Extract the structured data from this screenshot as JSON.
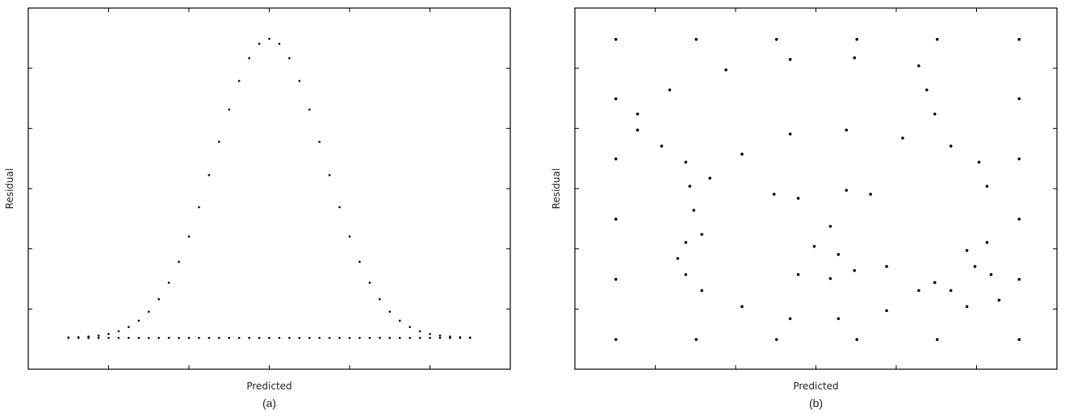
{
  "chart_data": [
    {
      "type": "scatter",
      "x_label": "Predicted",
      "y_label": "Residual",
      "caption": "(a)",
      "xlim": [
        0,
        6
      ],
      "ylim": [
        0,
        6
      ],
      "xticks": [
        1,
        2,
        3,
        4,
        5
      ],
      "yticks": [
        1,
        2,
        3,
        4,
        5
      ],
      "x": [
        0.5,
        0.625,
        0.75,
        0.875,
        1.0,
        1.125,
        1.25,
        1.375,
        1.5,
        1.625,
        1.75,
        1.875,
        2.0,
        2.125,
        2.25,
        2.375,
        2.5,
        2.625,
        2.75,
        2.875,
        3.0,
        3.125,
        3.25,
        3.375,
        3.5,
        3.625,
        3.75,
        3.875,
        4.0,
        4.125,
        4.25,
        4.375,
        4.5,
        4.625,
        4.75,
        4.875,
        5.0,
        5.125,
        5.25,
        5.375,
        5.5
      ],
      "series": [
        {
          "color": "#000000",
          "values": [
            0.526,
            0.531,
            0.541,
            0.558,
            0.586,
            0.631,
            0.701,
            0.806,
            0.956,
            1.164,
            1.437,
            1.785,
            2.205,
            2.692,
            3.225,
            3.778,
            4.314,
            4.789,
            5.167,
            5.406,
            5.49,
            5.406,
            5.167,
            4.789,
            4.314,
            3.778,
            3.225,
            2.692,
            2.205,
            1.785,
            1.437,
            1.164,
            0.956,
            0.806,
            0.701,
            0.631,
            0.586,
            0.558,
            0.541,
            0.531,
            0.526
          ]
        },
        {
          "color": "#000000",
          "values": [
            0.52,
            0.52,
            0.52,
            0.52,
            0.52,
            0.52,
            0.52,
            0.52,
            0.52,
            0.52,
            0.52,
            0.52,
            0.52,
            0.52,
            0.52,
            0.52,
            0.52,
            0.52,
            0.52,
            0.52,
            0.52,
            0.52,
            0.52,
            0.52,
            0.52,
            0.52,
            0.52,
            0.52,
            0.52,
            0.52,
            0.52,
            0.52,
            0.52,
            0.52,
            0.52,
            0.52,
            0.52,
            0.52,
            0.52,
            0.52,
            0.52
          ]
        }
      ]
    },
    {
      "type": "scatter",
      "x_label": "Predicted",
      "y_label": "Residual",
      "caption": "(b)",
      "xlim": [
        0,
        600
      ],
      "ylim": [
        0,
        450
      ],
      "xticks": [
        100,
        200,
        300,
        400,
        500
      ],
      "yticks": [
        75,
        150,
        225,
        300,
        375
      ],
      "x": [
        51,
        151,
        251,
        351,
        451,
        553,
        51,
        151,
        251,
        351,
        451,
        553,
        51,
        51,
        51,
        51,
        553,
        553,
        553,
        553,
        78,
        118,
        188,
        268,
        348,
        428,
        438,
        448,
        468,
        503,
        513,
        513,
        498,
        518,
        528,
        488,
        468,
        78,
        108,
        138,
        143,
        168,
        208,
        268,
        338,
        408,
        148,
        158,
        138,
        128,
        138,
        158,
        208,
        268,
        328,
        388,
        428,
        248,
        278,
        338,
        368,
        318,
        298,
        328,
        278,
        318,
        348,
        388,
        448,
        488
      ],
      "series": [
        {
          "color": "#000000",
          "values": [
            411,
            411,
            411,
            411,
            411,
            411,
            37,
            37,
            37,
            37,
            37,
            37,
            112,
            187,
            262,
            337,
            112,
            187,
            262,
            337,
            318,
            348,
            373,
            386,
            388,
            378,
            348,
            318,
            278,
            258,
            228,
            158,
            128,
            118,
            86,
            78,
            98,
            298,
            278,
            258,
            228,
            238,
            268,
            293,
            298,
            288,
            198,
            168,
            158,
            138,
            118,
            98,
            78,
            63,
            63,
            73,
            98,
            218,
            213,
            223,
            218,
            178,
            153,
            143,
            118,
            113,
            123,
            128,
            108,
            148
          ]
        }
      ]
    }
  ]
}
